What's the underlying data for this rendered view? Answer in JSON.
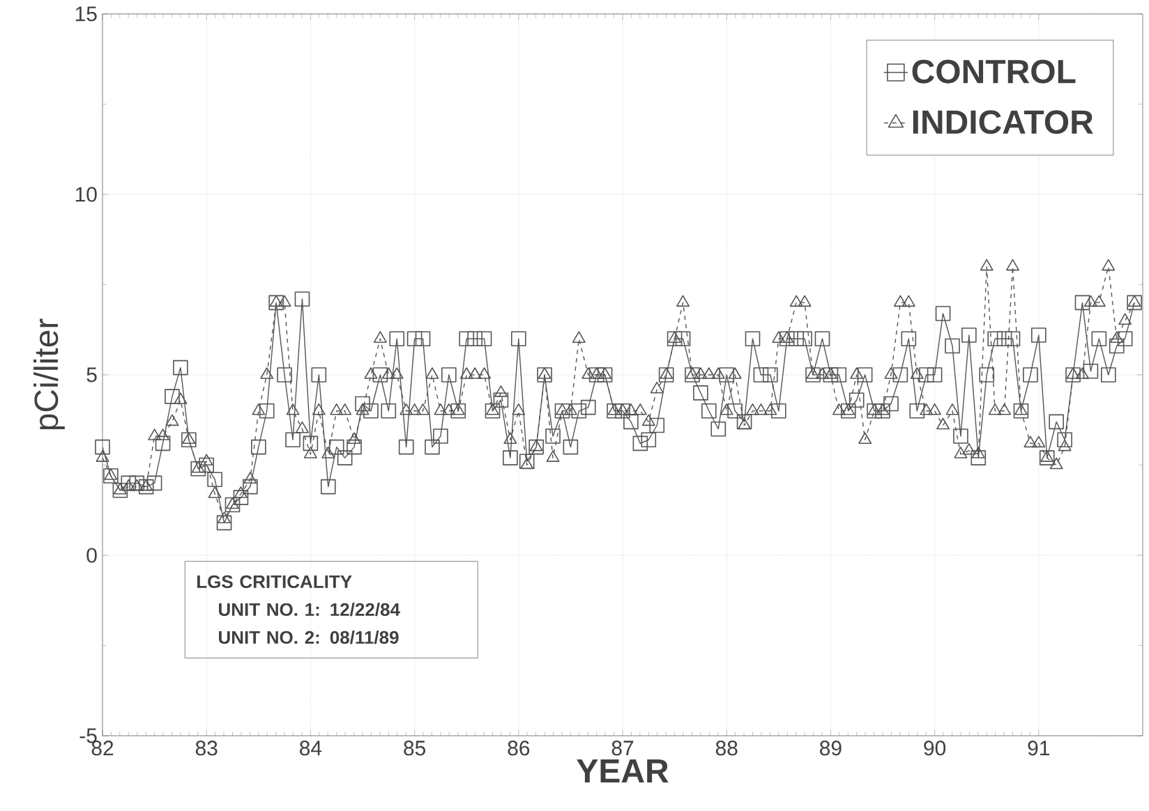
{
  "chart_data": {
    "type": "line",
    "xlabel": "YEAR",
    "ylabel": "pCi/liter",
    "x": [
      82.0,
      82.08,
      82.17,
      82.25,
      82.33,
      82.42,
      82.5,
      82.58,
      82.67,
      82.75,
      82.83,
      82.92,
      83.0,
      83.08,
      83.17,
      83.25,
      83.33,
      83.42,
      83.5,
      83.58,
      83.67,
      83.75,
      83.83,
      83.92,
      84.0,
      84.08,
      84.17,
      84.25,
      84.33,
      84.42,
      84.5,
      84.58,
      84.67,
      84.75,
      84.83,
      84.92,
      85.0,
      85.08,
      85.17,
      85.25,
      85.33,
      85.42,
      85.5,
      85.58,
      85.67,
      85.75,
      85.83,
      85.92,
      86.0,
      86.08,
      86.17,
      86.25,
      86.33,
      86.42,
      86.5,
      86.58,
      86.67,
      86.75,
      86.83,
      86.92,
      87.0,
      87.08,
      87.17,
      87.25,
      87.33,
      87.42,
      87.5,
      87.58,
      87.67,
      87.75,
      87.83,
      87.92,
      88.0,
      88.08,
      88.17,
      88.25,
      88.33,
      88.42,
      88.5,
      88.58,
      88.67,
      88.75,
      88.83,
      88.92,
      89.0,
      89.08,
      89.17,
      89.25,
      89.33,
      89.42,
      89.5,
      89.58,
      89.67,
      89.75,
      89.83,
      89.92,
      90.0,
      90.08,
      90.17,
      90.25,
      90.33,
      90.42,
      90.5,
      90.58,
      90.67,
      90.75,
      90.83,
      90.92,
      91.0,
      91.08,
      91.17,
      91.25,
      91.33,
      91.42,
      91.5,
      91.58,
      91.67,
      91.75,
      91.83,
      91.92
    ],
    "series": [
      {
        "name": "CONTROL",
        "color": "#555555",
        "marker": "square",
        "line_style": "solid",
        "values": [
          3.0,
          2.2,
          1.8,
          2.0,
          2.0,
          1.9,
          2.0,
          3.1,
          4.4,
          5.2,
          3.2,
          2.4,
          2.5,
          2.1,
          0.9,
          1.4,
          1.6,
          1.9,
          3.0,
          4.0,
          7.0,
          5.0,
          3.2,
          7.1,
          3.1,
          5.0,
          1.9,
          3.0,
          2.7,
          3.0,
          4.2,
          4.0,
          5.0,
          4.0,
          6.0,
          3.0,
          6.0,
          6.0,
          3.0,
          3.3,
          5.0,
          4.0,
          6.0,
          6.0,
          6.0,
          4.0,
          4.3,
          2.7,
          6.0,
          2.6,
          3.0,
          5.0,
          3.3,
          4.0,
          3.0,
          4.0,
          4.1,
          5.0,
          5.0,
          4.0,
          4.0,
          3.7,
          3.1,
          3.2,
          3.6,
          5.0,
          6.0,
          6.0,
          5.0,
          4.5,
          4.0,
          3.5,
          5.0,
          4.0,
          3.7,
          6.0,
          5.0,
          5.0,
          4.0,
          6.0,
          6.0,
          6.0,
          5.0,
          6.0,
          5.0,
          5.0,
          4.0,
          4.3,
          5.0,
          4.0,
          4.0,
          4.2,
          5.0,
          6.0,
          4.0,
          5.0,
          5.0,
          6.7,
          5.8,
          3.3,
          6.1,
          2.7,
          5.0,
          6.0,
          6.0,
          6.0,
          4.0,
          5.0,
          6.1,
          2.7,
          3.7,
          3.2,
          5.0,
          7.0,
          5.1,
          6.0,
          5.0,
          5.8,
          6.0,
          7.0
        ]
      },
      {
        "name": "INDICATOR",
        "color": "#555555",
        "marker": "triangle",
        "line_style": "dashed",
        "values": [
          2.7,
          2.2,
          1.8,
          1.9,
          1.9,
          1.9,
          3.3,
          3.3,
          3.7,
          4.3,
          3.2,
          2.4,
          2.6,
          1.7,
          1.0,
          1.4,
          1.7,
          2.1,
          4.0,
          5.0,
          7.0,
          7.0,
          4.0,
          3.5,
          2.8,
          4.0,
          2.8,
          4.0,
          4.0,
          3.2,
          4.0,
          5.0,
          6.0,
          5.0,
          5.0,
          4.0,
          4.0,
          4.0,
          5.0,
          4.0,
          4.0,
          4.0,
          5.0,
          5.0,
          5.0,
          4.0,
          4.5,
          3.2,
          4.0,
          2.5,
          3.0,
          5.0,
          2.7,
          4.0,
          4.0,
          6.0,
          5.0,
          5.0,
          5.0,
          4.0,
          4.0,
          4.0,
          4.0,
          3.7,
          4.6,
          5.0,
          6.0,
          7.0,
          5.0,
          5.0,
          5.0,
          5.0,
          4.0,
          5.0,
          3.6,
          4.0,
          4.0,
          4.0,
          6.0,
          6.0,
          7.0,
          7.0,
          5.0,
          5.0,
          5.0,
          4.0,
          4.0,
          5.0,
          3.2,
          4.0,
          4.0,
          5.0,
          7.0,
          7.0,
          5.0,
          4.0,
          4.0,
          3.6,
          4.0,
          2.8,
          2.9,
          2.8,
          8.0,
          4.0,
          4.0,
          8.0,
          4.0,
          3.1,
          3.1,
          2.7,
          2.5,
          3.0,
          5.0,
          5.0,
          7.0,
          7.0,
          8.0,
          6.0,
          6.5,
          7.0
        ]
      }
    ],
    "xlim": [
      82,
      92
    ],
    "xticks": [
      82,
      83,
      84,
      85,
      86,
      87,
      88,
      89,
      90,
      91
    ],
    "ylim": [
      -5,
      15
    ],
    "yticks": [
      -5,
      0,
      5,
      10,
      15
    ],
    "grid": true,
    "legend": "top right",
    "annotations": [
      "LGS CRITICALITY",
      "UNIT NO. 1:  12/22/84",
      "UNIT NO. 2:  08/11/89"
    ]
  }
}
